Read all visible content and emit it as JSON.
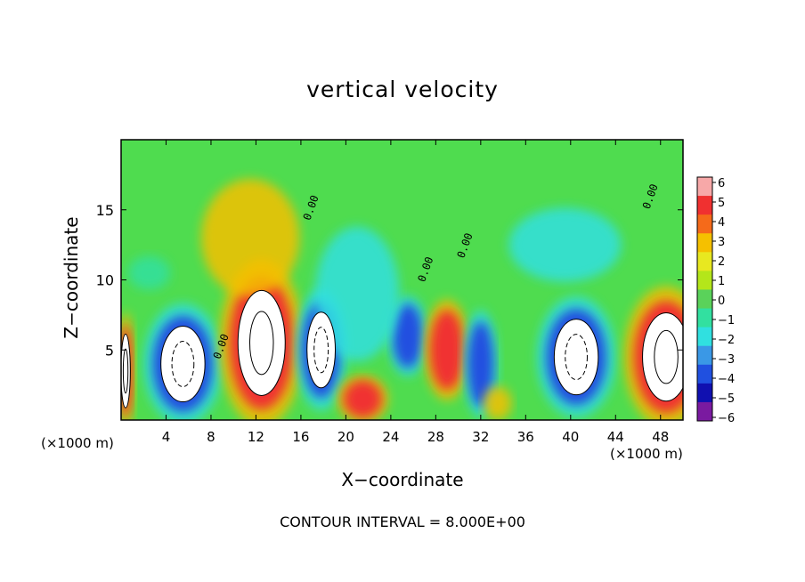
{
  "chart_data": {
    "type": "heatmap",
    "title": "vertical velocity",
    "xlabel": "X−coordinate",
    "ylabel": "Z−coordinate",
    "x_unit_left": "(×1000 m)",
    "x_unit_right": "(×1000 m)",
    "annotation": "CONTOUR INTERVAL = 8.000E+00",
    "xlim": [
      0,
      50
    ],
    "ylim": [
      0,
      20
    ],
    "x_ticks": [
      4,
      8,
      12,
      16,
      20,
      24,
      28,
      32,
      36,
      40,
      44,
      48
    ],
    "x_tick_labels": [
      "4",
      "8",
      "12",
      "16",
      "20",
      "24",
      "28",
      "32",
      "36",
      "40",
      "44",
      "48"
    ],
    "y_ticks": [
      5,
      10,
      15
    ],
    "y_tick_labels": [
      "5",
      "10",
      "15"
    ],
    "colorbar": {
      "min": -6,
      "max": 6,
      "tick_labels": [
        "6",
        "5",
        "4",
        "3",
        "2",
        "1",
        "0",
        "−1",
        "−2",
        "−3",
        "−4",
        "−5",
        "−6"
      ],
      "colors": [
        "#f7a8a8",
        "#f03030",
        "#f56a1a",
        "#f5c000",
        "#e8e820",
        "#b4e61a",
        "#5ad25a",
        "#32e0a0",
        "#30e0e0",
        "#3a98e6",
        "#2050e0",
        "#1010b0",
        "#7a1aa0"
      ]
    },
    "contour_labels": [
      "0.00",
      "0.00",
      "0.00",
      "0.00",
      "0.00"
    ],
    "features": [
      {
        "kind": "updraft",
        "x": 0.4,
        "z": 3.5,
        "rx": 0.6,
        "rz": 3.5,
        "value": 8
      },
      {
        "kind": "downdraft",
        "x": 5.5,
        "z": 4.0,
        "rx": 2.8,
        "rz": 3.6,
        "value": -8
      },
      {
        "kind": "updraft",
        "x": 12.5,
        "z": 5.5,
        "rx": 3.0,
        "rz": 5.0,
        "value": 8
      },
      {
        "kind": "downdraft",
        "x": 17.8,
        "z": 5.0,
        "rx": 1.8,
        "rz": 3.6,
        "value": -8
      },
      {
        "kind": "updraft",
        "x": 21.5,
        "z": 1.5,
        "rx": 1.8,
        "rz": 1.4,
        "value": 4
      },
      {
        "kind": "downdraft",
        "x": 25.5,
        "z": 6.0,
        "rx": 1.4,
        "rz": 2.4,
        "value": -6
      },
      {
        "kind": "updraft",
        "x": 29.0,
        "z": 5.0,
        "rx": 1.6,
        "rz": 3.0,
        "value": 5
      },
      {
        "kind": "downdraft",
        "x": 32.0,
        "z": 4.0,
        "rx": 1.2,
        "rz": 3.2,
        "value": -6
      },
      {
        "kind": "updraft",
        "x": 33.5,
        "z": 1.2,
        "rx": 1.0,
        "rz": 1.0,
        "value": 3
      },
      {
        "kind": "downdraft",
        "x": 40.5,
        "z": 4.5,
        "rx": 2.8,
        "rz": 3.6,
        "value": -8
      },
      {
        "kind": "downdraft",
        "x": 39.5,
        "z": 12.5,
        "rx": 4.0,
        "rz": 2.2,
        "value": -3
      },
      {
        "kind": "updraft",
        "x": 48.5,
        "z": 4.5,
        "rx": 3.0,
        "rz": 4.2,
        "value": 8
      },
      {
        "kind": "updraft",
        "x": 11.5,
        "z": 13.0,
        "rx": 3.5,
        "rz": 3.5,
        "value": 3
      },
      {
        "kind": "downdraft",
        "x": 21.0,
        "z": 9.0,
        "rx": 3.0,
        "rz": 4.0,
        "value": -2
      },
      {
        "kind": "downdraft",
        "x": 2.5,
        "z": 10.5,
        "rx": 1.5,
        "rz": 1.0,
        "value": -1
      }
    ]
  }
}
